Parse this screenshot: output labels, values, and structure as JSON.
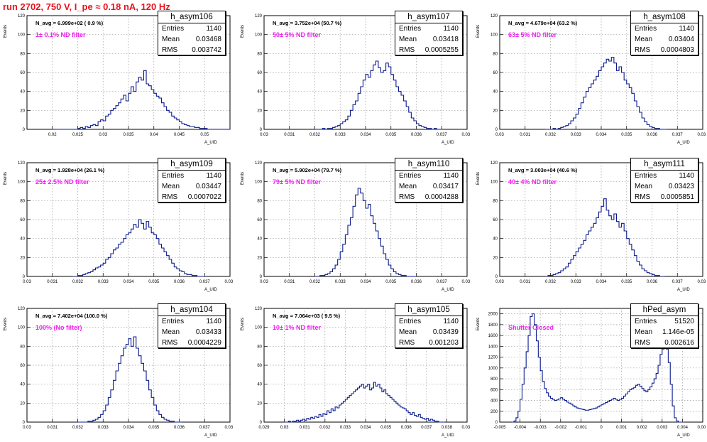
{
  "title": "run 2702,   750 V, I_pe ≈ 0.18 nA, 120 Hz",
  "stats_labels": {
    "entries": "Entries",
    "mean": "Mean",
    "rms": "RMS"
  },
  "ylabel": "Events",
  "colors": {
    "title": "#e8141e",
    "histogram": "#0a1a8c",
    "filter_text": "#ee22ee"
  },
  "chart_data": [
    {
      "type": "histogram",
      "name": "h_asym106",
      "navg": "N_avg = 6.999e+02 ( 0.9 %)",
      "filter": "1± 0.1% ND filter",
      "entries": "1140",
      "mean": "0.03468",
      "rms": "0.003742",
      "xlabel": "A_UID",
      "ylabel": "Events",
      "xlim": [
        0.015,
        0.055
      ],
      "ylim": [
        0,
        120
      ],
      "xticks": [
        0.02,
        0.025,
        0.03,
        0.035,
        0.04,
        0.045,
        0.05
      ],
      "xticklabels": [
        "0.02",
        "0.025",
        "0.03",
        "0.035",
        "0.04",
        "0.045",
        "0.05"
      ],
      "yticks": [
        0,
        20,
        40,
        60,
        80,
        100,
        120
      ],
      "bin_start": 0.02,
      "bin_width": 0.0005,
      "counts": [
        0,
        0,
        0,
        0,
        0,
        0,
        0,
        0,
        0,
        0,
        1,
        2,
        1,
        3,
        2,
        4,
        5,
        4,
        8,
        10,
        9,
        14,
        16,
        20,
        22,
        25,
        28,
        32,
        36,
        30,
        38,
        45,
        40,
        50,
        55,
        52,
        62,
        48,
        46,
        42,
        38,
        35,
        33,
        28,
        24,
        20,
        18,
        14,
        12,
        10,
        8,
        6,
        5,
        4,
        3,
        3,
        2,
        2,
        1,
        1,
        1,
        0,
        0,
        0,
        0,
        0,
        0,
        0,
        0,
        0
      ]
    },
    {
      "type": "histogram",
      "name": "h_asym107",
      "navg": "N_avg = 3.752e+04 (50.7 %)",
      "filter": "50± 5% ND filter",
      "entries": "1140",
      "mean": "0.03418",
      "rms": "0.0005255",
      "xlabel": "A_UID",
      "ylabel": "Events",
      "xlim": [
        0.03,
        0.038
      ],
      "ylim": [
        0,
        120
      ],
      "xticks": [
        0.03,
        0.031,
        0.032,
        0.033,
        0.034,
        0.035,
        0.036,
        0.037,
        0.038
      ],
      "xticklabels": [
        "0.03",
        "0.031",
        "0.032",
        "0.033",
        "0.034",
        "0.035",
        "0.036",
        "0.037",
        "0.038"
      ],
      "yticks": [
        0,
        20,
        40,
        60,
        80,
        100,
        120
      ],
      "bin_start": 0.032,
      "bin_width": 0.0001,
      "counts": [
        0,
        0,
        0,
        1,
        0,
        1,
        1,
        2,
        3,
        4,
        6,
        8,
        10,
        14,
        20,
        26,
        30,
        38,
        45,
        52,
        58,
        55,
        62,
        68,
        72,
        65,
        60,
        62,
        70,
        66,
        58,
        52,
        45,
        40,
        36,
        30,
        24,
        18,
        12,
        9,
        6,
        4,
        3,
        2,
        1,
        1,
        0,
        1,
        0,
        0
      ]
    },
    {
      "type": "histogram",
      "name": "h_asym108",
      "navg": "N_avg = 4.679e+04 (63.2 %)",
      "filter": "63± 5% ND filter",
      "entries": "1140",
      "mean": "0.03404",
      "rms": "0.0004803",
      "xlabel": "A_UID",
      "ylabel": "Events",
      "xlim": [
        0.03,
        0.038
      ],
      "ylim": [
        0,
        120
      ],
      "xticks": [
        0.03,
        0.031,
        0.032,
        0.033,
        0.034,
        0.035,
        0.036,
        0.037,
        0.038
      ],
      "xticklabels": [
        "0.03",
        "0.031",
        "0.032",
        "0.033",
        "0.034",
        "0.035",
        "0.036",
        "0.037",
        "0.038"
      ],
      "yticks": [
        0,
        20,
        40,
        60,
        80,
        100,
        120
      ],
      "bin_start": 0.0318,
      "bin_width": 0.0001,
      "counts": [
        0,
        0,
        0,
        1,
        0,
        1,
        2,
        3,
        4,
        6,
        9,
        12,
        16,
        22,
        28,
        34,
        40,
        44,
        48,
        52,
        56,
        62,
        66,
        70,
        74,
        72,
        76,
        70,
        62,
        66,
        60,
        52,
        48,
        44,
        38,
        30,
        24,
        18,
        12,
        8,
        5,
        3,
        2,
        1,
        1,
        0,
        0,
        0
      ]
    },
    {
      "type": "histogram",
      "name": "h_asym109",
      "navg": "N_avg = 1.928e+04 (26.1 %)",
      "filter": "25± 2.5% ND filter",
      "entries": "1140",
      "mean": "0.03447",
      "rms": "0.0007022",
      "xlabel": "A_UID",
      "ylabel": "Events",
      "xlim": [
        0.03,
        0.038
      ],
      "ylim": [
        0,
        120
      ],
      "xticks": [
        0.03,
        0.031,
        0.032,
        0.033,
        0.034,
        0.035,
        0.036,
        0.037,
        0.038
      ],
      "xticklabels": [
        "0.03",
        "0.031",
        "0.032",
        "0.033",
        "0.034",
        "0.035",
        "0.036",
        "0.037",
        "0.038"
      ],
      "yticks": [
        0,
        20,
        40,
        60,
        80,
        100,
        120
      ],
      "bin_start": 0.0318,
      "bin_width": 0.0001,
      "counts": [
        0,
        0,
        1,
        1,
        2,
        3,
        4,
        5,
        7,
        9,
        10,
        12,
        14,
        18,
        20,
        24,
        28,
        30,
        34,
        36,
        40,
        44,
        46,
        50,
        55,
        52,
        60,
        56,
        50,
        58,
        52,
        46,
        44,
        40,
        34,
        30,
        26,
        22,
        18,
        14,
        10,
        8,
        6,
        5,
        3,
        2,
        2,
        1,
        1,
        0,
        0,
        0
      ]
    },
    {
      "type": "histogram",
      "name": "h_asym110",
      "navg": "N_avg = 5.902e+04 (79.7 %)",
      "filter": "79± 5% ND filter",
      "entries": "1140",
      "mean": "0.03417",
      "rms": "0.0004288",
      "xlabel": "A_UID",
      "ylabel": "Events",
      "xlim": [
        0.03,
        0.038
      ],
      "ylim": [
        0,
        120
      ],
      "xticks": [
        0.03,
        0.031,
        0.032,
        0.033,
        0.034,
        0.035,
        0.036,
        0.037,
        0.038
      ],
      "xticklabels": [
        "0.03",
        "0.031",
        "0.032",
        "0.033",
        "0.034",
        "0.035",
        "0.036",
        "0.037",
        "0.038"
      ],
      "yticks": [
        0,
        20,
        40,
        60,
        80,
        100,
        120
      ],
      "bin_start": 0.032,
      "bin_width": 0.0001,
      "counts": [
        0,
        0,
        1,
        1,
        2,
        3,
        5,
        8,
        12,
        18,
        26,
        34,
        44,
        54,
        62,
        74,
        86,
        93,
        88,
        80,
        72,
        76,
        64,
        56,
        48,
        40,
        32,
        24,
        18,
        12,
        8,
        5,
        3,
        2,
        1,
        1,
        0,
        0,
        0,
        0
      ]
    },
    {
      "type": "histogram",
      "name": "h_asym111",
      "navg": "N_avg = 3.003e+04 (40.6 %)",
      "filter": "40± 4% ND filter",
      "entries": "1140",
      "mean": "0.03423",
      "rms": "0.0005851",
      "xlabel": "A_UID",
      "ylabel": "Events",
      "xlim": [
        0.03,
        0.038
      ],
      "ylim": [
        0,
        120
      ],
      "xticks": [
        0.03,
        0.031,
        0.032,
        0.033,
        0.034,
        0.035,
        0.036,
        0.037,
        0.038
      ],
      "xticklabels": [
        "0.03",
        "0.031",
        "0.032",
        "0.033",
        "0.034",
        "0.035",
        "0.036",
        "0.037",
        "0.038"
      ],
      "yticks": [
        0,
        20,
        40,
        60,
        80,
        100,
        120
      ],
      "bin_start": 0.0318,
      "bin_width": 0.0001,
      "counts": [
        0,
        1,
        1,
        2,
        3,
        4,
        6,
        8,
        10,
        14,
        18,
        22,
        26,
        30,
        34,
        38,
        44,
        48,
        52,
        56,
        62,
        68,
        74,
        82,
        70,
        64,
        60,
        66,
        58,
        52,
        56,
        48,
        40,
        34,
        28,
        22,
        16,
        12,
        8,
        6,
        4,
        3,
        2,
        1,
        1,
        0,
        0
      ]
    },
    {
      "type": "histogram",
      "name": "h_asym104",
      "navg": "N_avg = 7.402e+04 (100.0 %)",
      "filter": "100% (No filter)",
      "entries": "1140",
      "mean": "0.03433",
      "rms": "0.0004229",
      "xlabel": "A_UID",
      "ylabel": "Events",
      "xlim": [
        0.03,
        0.038
      ],
      "ylim": [
        0,
        120
      ],
      "xticks": [
        0.03,
        0.031,
        0.032,
        0.033,
        0.034,
        0.035,
        0.036,
        0.037,
        0.038
      ],
      "xticklabels": [
        "0.03",
        "0.031",
        "0.032",
        "0.033",
        "0.034",
        "0.035",
        "0.036",
        "0.037",
        "0.038"
      ],
      "yticks": [
        0,
        20,
        40,
        60,
        80,
        100,
        120
      ],
      "bin_start": 0.032,
      "bin_width": 0.0001,
      "counts": [
        0,
        0,
        0,
        0,
        1,
        1,
        2,
        3,
        5,
        8,
        12,
        18,
        26,
        34,
        44,
        54,
        62,
        70,
        78,
        82,
        88,
        80,
        90,
        78,
        70,
        62,
        54,
        44,
        34,
        26,
        18,
        12,
        8,
        5,
        3,
        2,
        1,
        1,
        0,
        0,
        0
      ]
    },
    {
      "type": "histogram",
      "name": "h_asym105",
      "navg": "N_avg = 7.064e+03 ( 9.5 %)",
      "filter": "10± 1% ND filter",
      "entries": "1140",
      "mean": "0.03439",
      "rms": "0.001203",
      "xlabel": "A_UID",
      "ylabel": "Events",
      "xlim": [
        0.029,
        0.039
      ],
      "ylim": [
        0,
        120
      ],
      "xticks": [
        0.029,
        0.03,
        0.031,
        0.032,
        0.033,
        0.034,
        0.035,
        0.036,
        0.037,
        0.038,
        0.039
      ],
      "xticklabels": [
        "0.029",
        "0.03",
        "0.031",
        "0.032",
        "0.033",
        "0.034",
        "0.035",
        "0.036",
        "0.037",
        "0.038",
        "0.039"
      ],
      "yticks": [
        0,
        20,
        40,
        60,
        80,
        100,
        120
      ],
      "bin_start": 0.03,
      "bin_width": 0.0001,
      "counts": [
        0,
        0,
        1,
        0,
        1,
        1,
        2,
        1,
        2,
        3,
        2,
        4,
        3,
        5,
        4,
        6,
        5,
        8,
        6,
        9,
        8,
        12,
        10,
        14,
        12,
        16,
        15,
        18,
        20,
        22,
        24,
        26,
        28,
        30,
        32,
        34,
        36,
        38,
        40,
        36,
        38,
        40,
        34,
        36,
        42,
        38,
        40,
        36,
        32,
        34,
        30,
        28,
        26,
        24,
        22,
        20,
        18,
        16,
        15,
        14,
        12,
        10,
        8,
        10,
        7,
        6,
        8,
        5,
        4,
        3,
        4,
        2,
        3,
        2,
        1,
        1,
        0,
        0,
        0
      ]
    },
    {
      "type": "histogram",
      "name": "hPed_asym",
      "navg": "",
      "filter": "Shutter Closed",
      "entries": "51520",
      "mean": "1.146e-05",
      "rms": "0.002616",
      "xlabel": "A_UID",
      "ylabel": "Events",
      "xlim": [
        -0.005,
        0.005
      ],
      "ylim": [
        0,
        2100
      ],
      "xticks": [
        -0.005,
        -0.004,
        -0.003,
        -0.002,
        -0.001,
        0,
        0.001,
        0.002,
        0.003,
        0.004,
        0.005
      ],
      "xticklabels": [
        "-0.005",
        "-0.004",
        "-0.003",
        "-0.002",
        "-0.001",
        "0",
        "0.001",
        "0.002",
        "0.003",
        "0.004",
        "0.005"
      ],
      "yticks": [
        0,
        200,
        400,
        600,
        800,
        1000,
        1200,
        1400,
        1600,
        1800,
        2000
      ],
      "bin_start": -0.0044,
      "bin_width": 0.0001,
      "counts": [
        0,
        20,
        80,
        200,
        420,
        700,
        1000,
        1300,
        1600,
        1950,
        2000,
        1800,
        1500,
        1200,
        950,
        750,
        620,
        540,
        480,
        440,
        420,
        400,
        410,
        430,
        450,
        420,
        400,
        370,
        350,
        330,
        300,
        280,
        260,
        250,
        240,
        230,
        220,
        220,
        230,
        240,
        250,
        260,
        280,
        300,
        320,
        340,
        360,
        380,
        400,
        420,
        440,
        420,
        400,
        420,
        440,
        480,
        520,
        560,
        600,
        620,
        640,
        680,
        700,
        660,
        620,
        580,
        560,
        600,
        650,
        720,
        800,
        900,
        1050,
        1250,
        1350,
        1400,
        1350,
        1100,
        700,
        300,
        80,
        20,
        0,
        0,
        0
      ]
    }
  ]
}
